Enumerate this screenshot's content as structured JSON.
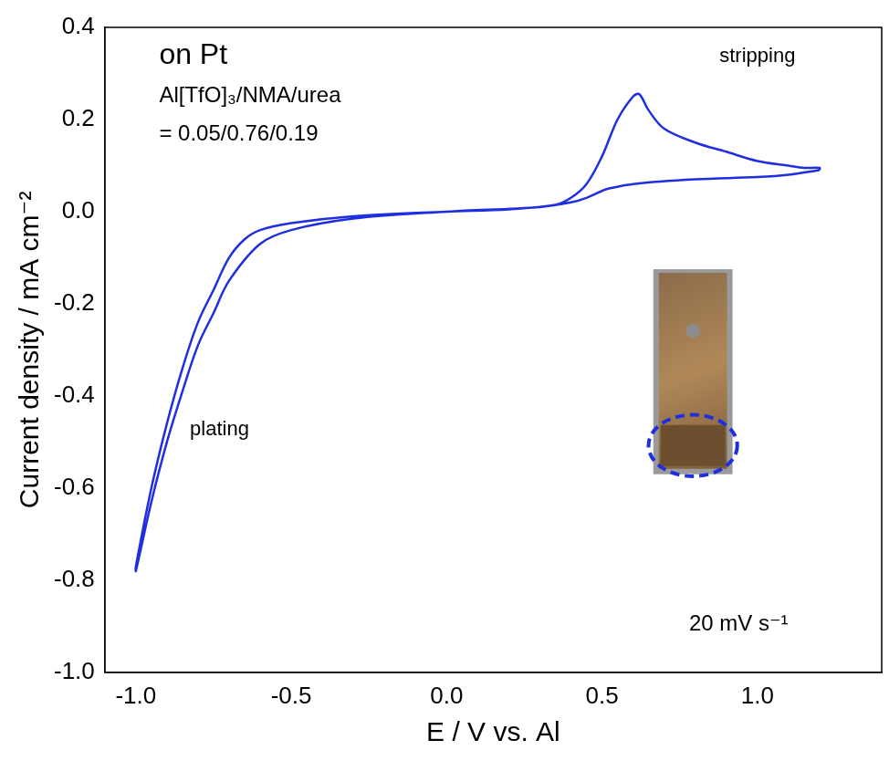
{
  "chart_data": {
    "type": "line",
    "x_label": "E / V vs. Al",
    "y_label": "Current density / mA cm⁻²",
    "annotations": [
      "on Pt",
      "Al[TfO]₃/NMA/urea",
      "= 0.05/0.76/0.19",
      "stripping",
      "plating",
      "20 mV s⁻¹"
    ],
    "xlim": [
      -1.1,
      1.4
    ],
    "xticks": [
      {
        "value": -1.0,
        "label": "-1.0"
      },
      -0.5,
      {
        "value": 0,
        "label": "0.0"
      },
      0.5,
      {
        "value": 1.0,
        "label": "1.0"
      }
    ],
    "ylim": [
      -1.0,
      0.4
    ],
    "yticks": [
      {
        "value": -1.0,
        "label": "-1.0"
      },
      -0.8,
      -0.6,
      -0.4,
      -0.2,
      {
        "value": 0,
        "label": "0.0"
      },
      0.2,
      0.4
    ],
    "grid": false,
    "series": [
      {
        "color": "#1f2fe0",
        "line_style": "solid",
        "x": [
          1.2,
          1.1,
          1.0,
          0.8,
          0.6,
          0.52,
          0.5,
          0.45,
          0.4,
          0.3,
          0.0,
          -0.3,
          -0.5,
          -0.6,
          -0.7,
          -0.75,
          -0.8,
          -0.85,
          -0.9,
          -0.95,
          -1.0,
          -1.0,
          -0.95,
          -0.9,
          -0.85,
          -0.8,
          -0.75,
          -0.7,
          -0.65,
          -0.6,
          -0.5,
          -0.3,
          0.0,
          0.2,
          0.35,
          0.4,
          0.45,
          0.5,
          0.55,
          0.6,
          0.62,
          0.65,
          0.7,
          0.8,
          0.9,
          1.0,
          1.1,
          1.15,
          1.2,
          1.2
        ],
        "values": [
          0.09,
          0.08,
          0.075,
          0.07,
          0.06,
          0.05,
          0.045,
          0.03,
          0.02,
          0.01,
          0.0,
          -0.015,
          -0.04,
          -0.07,
          -0.15,
          -0.22,
          -0.29,
          -0.39,
          -0.5,
          -0.63,
          -0.78,
          -0.77,
          -0.6,
          -0.46,
          -0.34,
          -0.24,
          -0.17,
          -0.1,
          -0.06,
          -0.04,
          -0.025,
          -0.01,
          0.0,
          0.005,
          0.015,
          0.03,
          0.06,
          0.12,
          0.2,
          0.25,
          0.255,
          0.22,
          0.18,
          0.15,
          0.13,
          0.11,
          0.1,
          0.095,
          0.095,
          0.09
        ]
      }
    ]
  }
}
